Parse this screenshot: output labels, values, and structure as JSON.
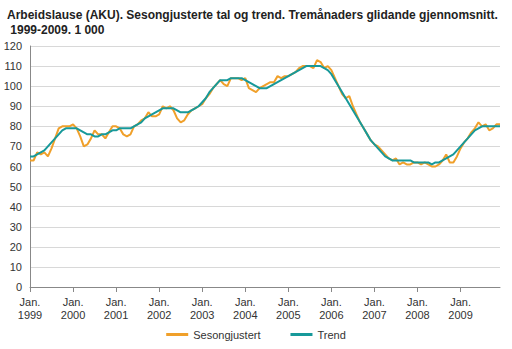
{
  "chart_data": {
    "type": "line",
    "title": "Arbeidslause (AKU). Sesongjusterte tal og trend. Tremånaders glidande gjennomsnitt. 1999-2009. 1 000",
    "categories": [
      "Jan.\n1999",
      null,
      null,
      null,
      null,
      null,
      null,
      null,
      null,
      null,
      null,
      null,
      "Jan.\n2000",
      null,
      null,
      null,
      null,
      null,
      null,
      null,
      null,
      null,
      null,
      null,
      "Jan.\n2001",
      null,
      null,
      null,
      null,
      null,
      null,
      null,
      null,
      null,
      null,
      null,
      "Jan.\n2002",
      null,
      null,
      null,
      null,
      null,
      null,
      null,
      null,
      null,
      null,
      null,
      "Jan.\n2003",
      null,
      null,
      null,
      null,
      null,
      null,
      null,
      null,
      null,
      null,
      null,
      "Jan.\n2004",
      null,
      null,
      null,
      null,
      null,
      null,
      null,
      null,
      null,
      null,
      null,
      "Jan.\n2005",
      null,
      null,
      null,
      null,
      null,
      null,
      null,
      null,
      null,
      null,
      null,
      "Jan.\n2006",
      null,
      null,
      null,
      null,
      null,
      null,
      null,
      null,
      null,
      null,
      null,
      "Jan.\n2007",
      null,
      null,
      null,
      null,
      null,
      null,
      null,
      null,
      null,
      null,
      null,
      "Jan.\n2008",
      null,
      null,
      null,
      null,
      null,
      null,
      null,
      null,
      null,
      null,
      null,
      "Jan.\n2009",
      null,
      null,
      null,
      null,
      null,
      null,
      null,
      null,
      null,
      null,
      null
    ],
    "series": [
      {
        "name": "Sesongjustert",
        "color": "#f0a02a",
        "values": [
          63,
          63,
          67,
          66,
          67,
          65,
          69,
          74,
          79,
          80,
          80,
          80,
          81,
          79,
          75,
          70,
          71,
          74,
          78,
          76,
          76,
          74,
          77,
          80,
          80,
          79,
          76,
          75,
          76,
          80,
          81,
          83,
          84,
          87,
          85,
          85,
          86,
          90,
          89,
          90,
          88,
          84,
          82,
          83,
          86,
          88,
          89,
          90,
          91,
          94,
          96,
          99,
          101,
          103,
          101,
          100,
          104,
          104,
          104,
          103,
          104,
          99,
          98,
          97,
          99,
          100,
          101,
          102,
          102,
          105,
          104,
          105,
          105,
          106,
          107,
          109,
          110,
          110,
          110,
          109,
          113,
          112,
          109,
          110,
          108,
          104,
          100,
          96,
          94,
          95,
          90,
          86,
          82,
          79,
          76,
          73,
          71,
          70,
          68,
          66,
          64,
          63,
          64,
          61,
          62,
          61,
          61,
          62,
          62,
          61,
          62,
          61,
          60,
          60,
          61,
          63,
          66,
          62,
          62,
          65,
          69,
          72,
          74,
          77,
          79,
          82,
          80,
          81,
          78,
          79,
          81,
          81
        ]
      },
      {
        "name": "Trend",
        "color": "#17999a",
        "values": [
          65,
          65,
          66,
          67,
          68,
          70,
          72,
          74,
          76,
          78,
          79,
          79,
          79,
          79,
          78,
          77,
          76,
          76,
          75,
          75,
          76,
          76,
          77,
          78,
          78,
          79,
          79,
          79,
          79,
          80,
          81,
          82,
          84,
          85,
          86,
          87,
          88,
          89,
          89,
          89,
          89,
          88,
          87,
          87,
          87,
          88,
          89,
          90,
          92,
          94,
          97,
          99,
          101,
          103,
          103,
          103,
          104,
          104,
          104,
          104,
          103,
          102,
          101,
          100,
          99,
          99,
          99,
          100,
          101,
          102,
          103,
          104,
          105,
          106,
          107,
          108,
          109,
          110,
          110,
          110,
          110,
          110,
          109,
          108,
          106,
          103,
          100,
          97,
          94,
          91,
          88,
          85,
          82,
          79,
          76,
          73,
          71,
          69,
          67,
          65,
          64,
          63,
          63,
          63,
          63,
          63,
          63,
          62,
          62,
          62,
          62,
          62,
          61,
          62,
          62,
          63,
          64,
          65,
          66,
          68,
          70,
          72,
          74,
          76,
          78,
          79,
          80,
          80,
          80,
          80,
          80,
          80
        ]
      }
    ],
    "ylim": [
      0,
      120
    ],
    "yticks": [
      0,
      10,
      20,
      30,
      40,
      50,
      60,
      70,
      80,
      90,
      100,
      110,
      120
    ],
    "grid": true,
    "legend": "bottom"
  }
}
